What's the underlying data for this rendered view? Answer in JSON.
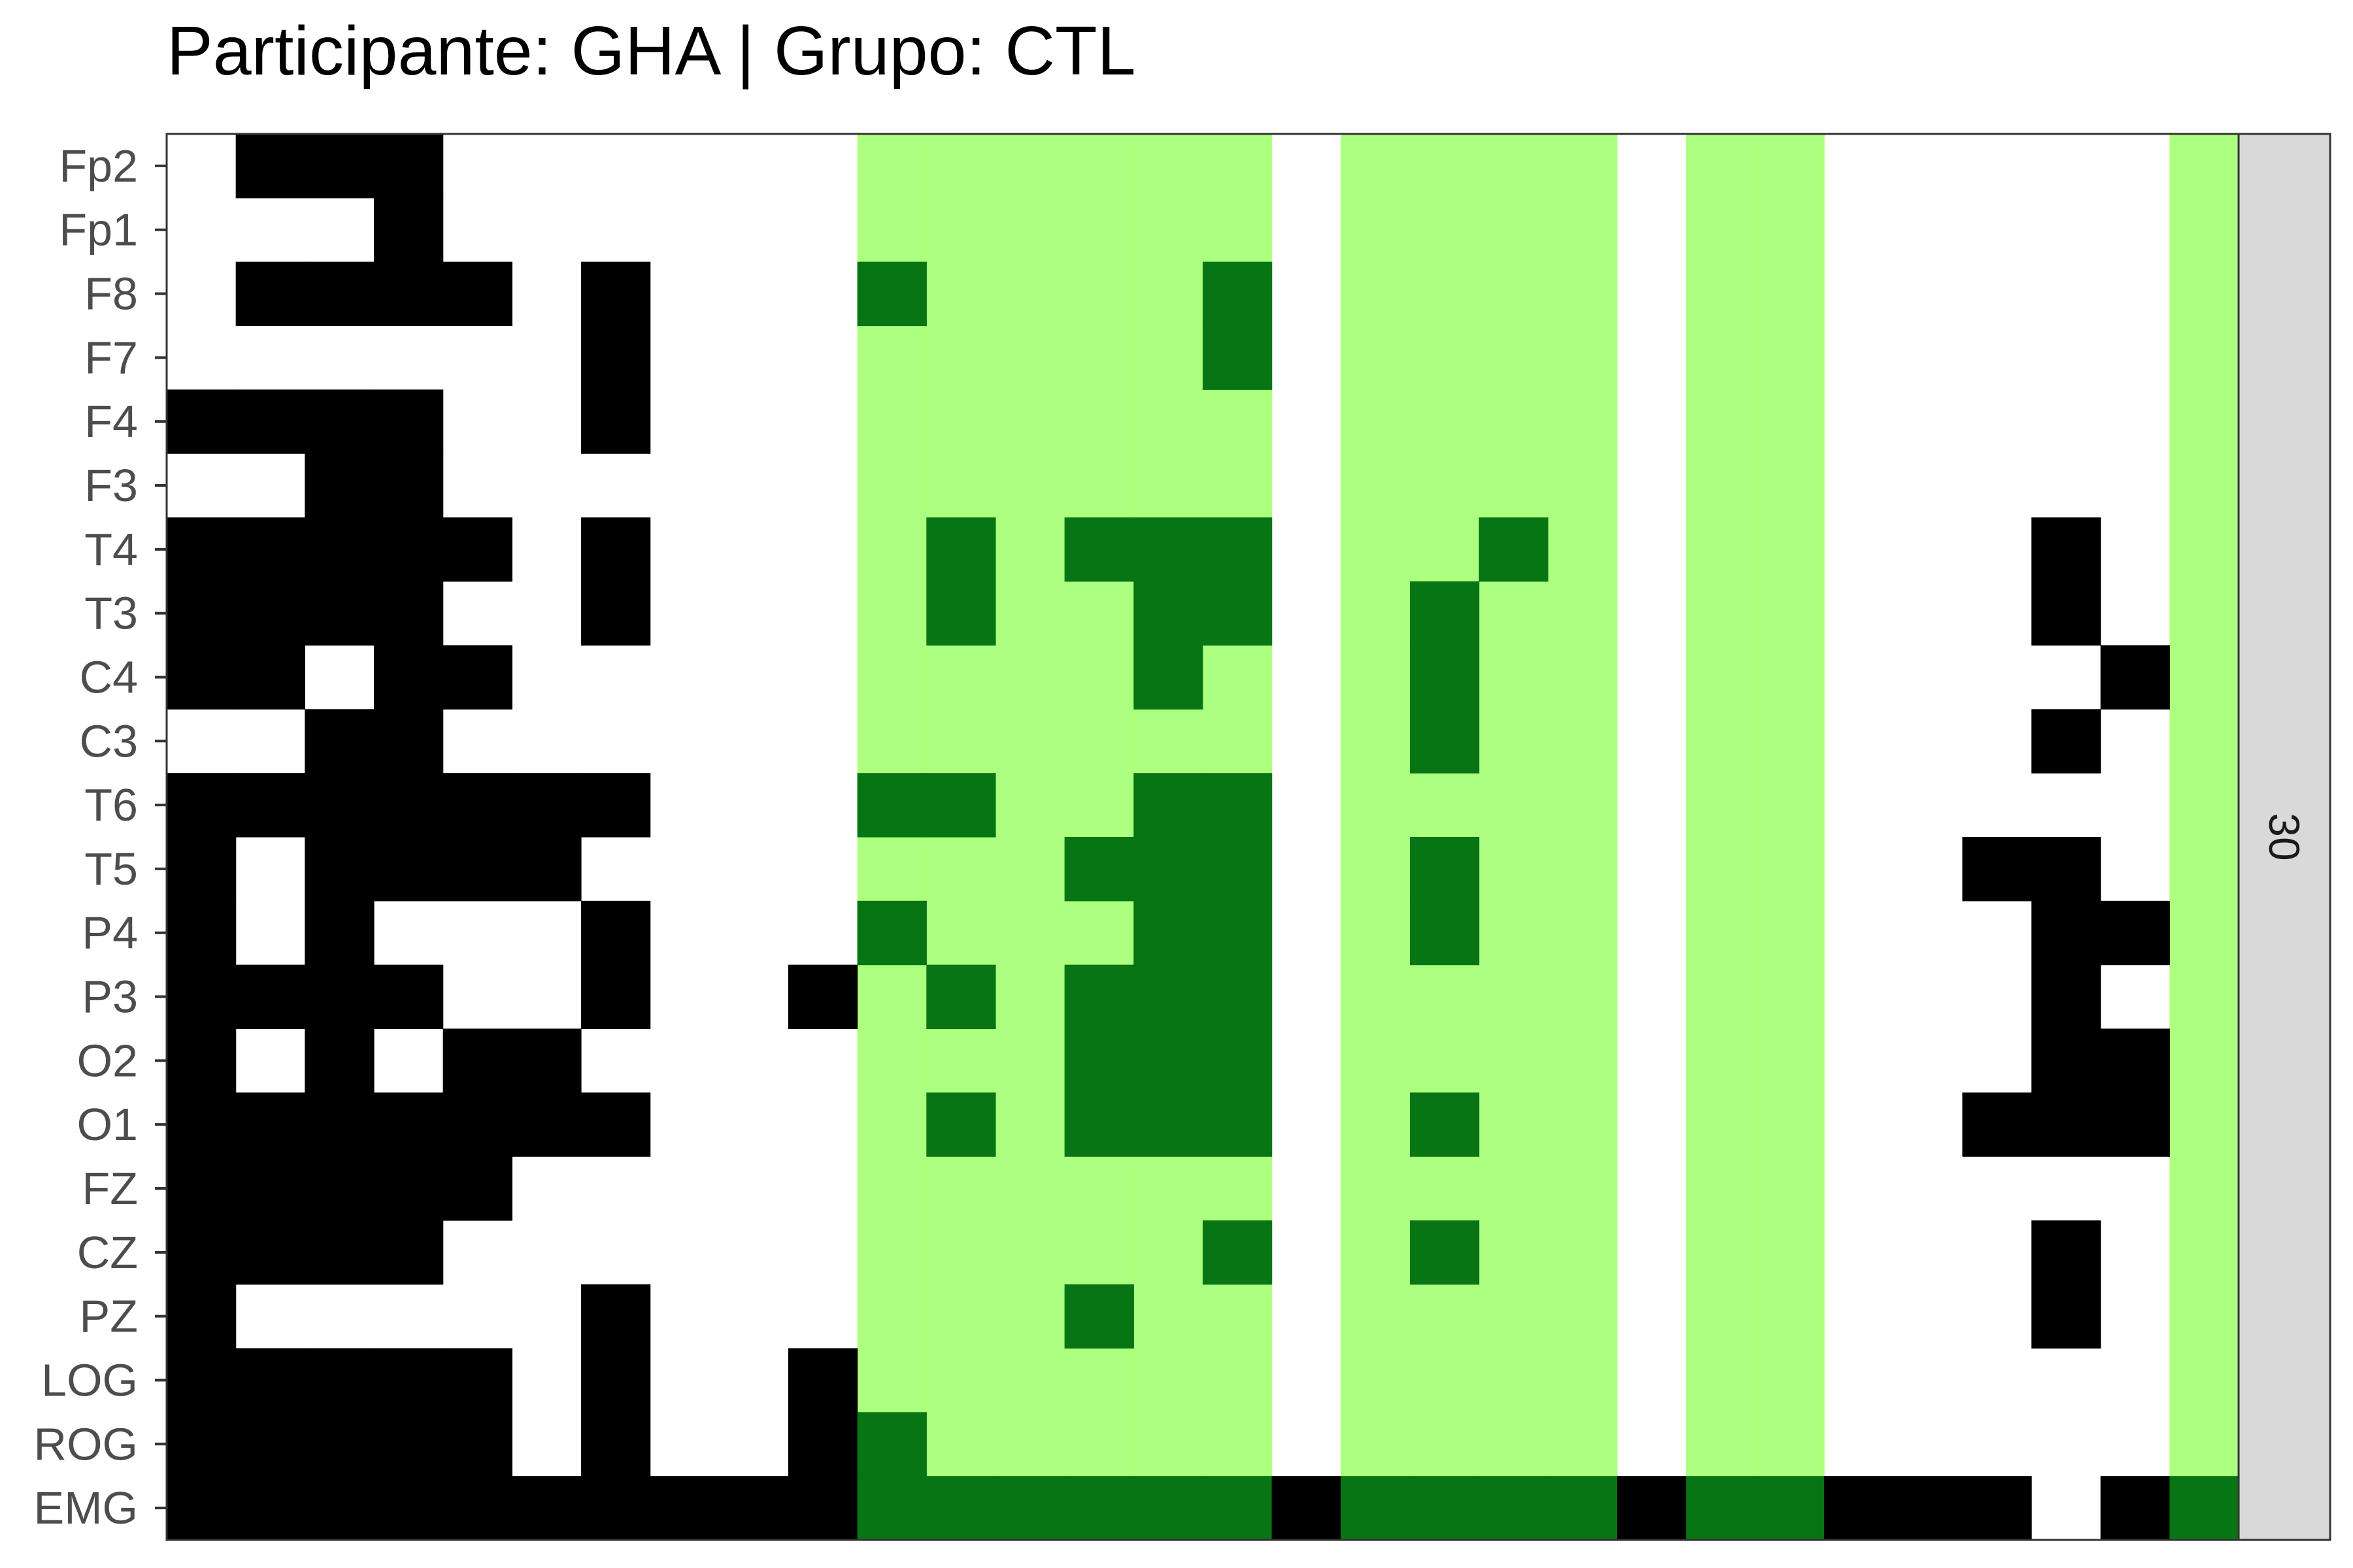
{
  "chart_data": {
    "type": "heatmap",
    "title": "Participante: GHA | Grupo: CTL",
    "facet_label": "30",
    "channels": [
      "Fp2",
      "Fp1",
      "F8",
      "F7",
      "F4",
      "F3",
      "T4",
      "T3",
      "C4",
      "C3",
      "T6",
      "T5",
      "P4",
      "P3",
      "O2",
      "O1",
      "FZ",
      "CZ",
      "PZ",
      "LOG",
      "ROG",
      "EMG"
    ],
    "n_epochs": 30,
    "highlighted_epochs": [
      10,
      11,
      12,
      13,
      14,
      15,
      17,
      18,
      19,
      20,
      22,
      23,
      29
    ],
    "colors": {
      "background": "#ffffff",
      "highlight": "#adff7f",
      "mark": "#000000",
      "mark_in_highlight": "#077513",
      "strip": "#d9d9d9"
    },
    "marks": {
      "Fp2": [
        1,
        2,
        3
      ],
      "Fp1": [
        3
      ],
      "F8": [
        1,
        2,
        3,
        4,
        6,
        10,
        15
      ],
      "F7": [
        6,
        15
      ],
      "F4": [
        0,
        1,
        2,
        3,
        6
      ],
      "F3": [
        2,
        3
      ],
      "T4": [
        0,
        1,
        2,
        3,
        4,
        6,
        11,
        13,
        14,
        15,
        19,
        27
      ],
      "T3": [
        0,
        1,
        2,
        3,
        6,
        11,
        14,
        15,
        18,
        27
      ],
      "C4": [
        0,
        1,
        3,
        4,
        14,
        18,
        28
      ],
      "C3": [
        2,
        3,
        18,
        27
      ],
      "T6": [
        0,
        1,
        2,
        3,
        4,
        5,
        6,
        10,
        11,
        14,
        15
      ],
      "T5": [
        0,
        2,
        3,
        4,
        5,
        13,
        14,
        15,
        18,
        26,
        27
      ],
      "P4": [
        0,
        2,
        6,
        10,
        14,
        15,
        18,
        27,
        28
      ],
      "P3": [
        0,
        1,
        2,
        3,
        6,
        9,
        11,
        13,
        14,
        15,
        27
      ],
      "O2": [
        0,
        2,
        4,
        5,
        13,
        14,
        15,
        27,
        28
      ],
      "O1": [
        0,
        1,
        2,
        3,
        4,
        5,
        6,
        11,
        13,
        14,
        15,
        18,
        26,
        27,
        28
      ],
      "FZ": [
        0,
        1,
        2,
        3,
        4
      ],
      "CZ": [
        0,
        1,
        2,
        3,
        15,
        18,
        27
      ],
      "PZ": [
        0,
        6,
        13,
        27
      ],
      "LOG": [
        0,
        1,
        2,
        3,
        4,
        6,
        9
      ],
      "ROG": [
        0,
        1,
        2,
        3,
        4,
        6,
        9,
        10
      ],
      "EMG": [
        0,
        1,
        2,
        3,
        4,
        5,
        6,
        7,
        8,
        9,
        10,
        11,
        12,
        13,
        14,
        15,
        16,
        17,
        18,
        19,
        20,
        21,
        22,
        23,
        24,
        25,
        26,
        28,
        29
      ]
    }
  }
}
